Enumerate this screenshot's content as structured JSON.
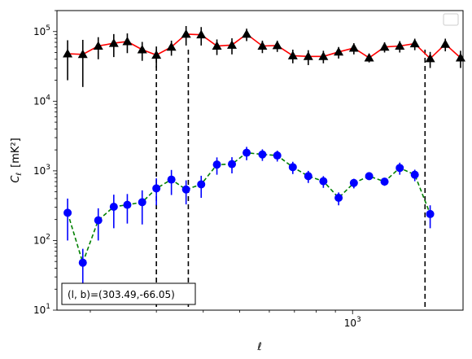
{
  "chart_data": {
    "type": "scatter",
    "title": "",
    "xlabel": "ℓ",
    "ylabel_main": "C",
    "ylabel_sub": "ℓ",
    "ylabel_unit": "[mK²]",
    "xscale": "log",
    "yscale": "log",
    "xlim": [
      163,
      1970
    ],
    "ylim": [
      10,
      200000
    ],
    "grid": false,
    "legend": "top-right, empty",
    "x_tick_labels": [
      {
        "value": 1000,
        "base": "10",
        "exp": "3"
      }
    ],
    "y_tick_labels": [
      {
        "value": 10,
        "base": "10",
        "exp": "1"
      },
      {
        "value": 100,
        "base": "10",
        "exp": "2"
      },
      {
        "value": 1000,
        "base": "10",
        "exp": "3"
      },
      {
        "value": 10000,
        "base": "10",
        "exp": "4"
      },
      {
        "value": 100000,
        "base": "10",
        "exp": "5"
      }
    ],
    "vlines": [
      300,
      365,
      1560
    ],
    "annotation": "(l, b)=(303.49,-66.05)",
    "series": [
      {
        "marker": "triangle",
        "color": "#000000",
        "line_color": "#ff0000",
        "line_style": "solid",
        "x": [
          174,
          191,
          210,
          231,
          251,
          275,
          300,
          329,
          360,
          395,
          435,
          477,
          522,
          575,
          630,
          693,
          762,
          836,
          918,
          1008,
          1107,
          1217,
          1336,
          1465,
          1610,
          1767,
          1940
        ],
        "y": [
          48000,
          47000,
          62000,
          68000,
          72000,
          55000,
          46000,
          60000,
          92000,
          90000,
          62000,
          64000,
          92000,
          62000,
          63000,
          45000,
          44000,
          44000,
          51000,
          58000,
          42000,
          60000,
          62000,
          67000,
          41000,
          66000,
          42000
        ],
        "err_low": [
          28000,
          31000,
          22000,
          25000,
          23000,
          17000,
          16000,
          15000,
          29000,
          27000,
          16000,
          17000,
          19000,
          13000,
          12000,
          10000,
          11000,
          9000,
          10000,
          11000,
          6000,
          10000,
          12000,
          13000,
          11000,
          14000,
          12000
        ],
        "err_high": [
          27000,
          29000,
          21000,
          24000,
          22000,
          16000,
          15000,
          14000,
          28000,
          26000,
          15000,
          16000,
          18000,
          12000,
          11000,
          10000,
          10000,
          9000,
          9000,
          10000,
          6000,
          10000,
          11000,
          12000,
          10000,
          13000,
          11000
        ]
      },
      {
        "marker": "circle",
        "color": "#0000ff",
        "line_color": "#008000",
        "line_style": "dashed",
        "x": [
          174,
          191,
          210,
          231,
          251,
          275,
          300,
          329,
          360,
          395,
          435,
          477,
          522,
          575,
          630,
          693,
          762,
          836,
          918,
          1008,
          1107,
          1217,
          1336,
          1465,
          1610,
          1767,
          1940
        ],
        "y": [
          250,
          48,
          195,
          305,
          325,
          355,
          560,
          750,
          540,
          640,
          1230,
          1250,
          1820,
          1720,
          1660,
          1130,
          840,
          710,
          410,
          670,
          840,
          700,
          1100,
          880,
          240,
          0,
          0
        ],
        "err_low": [
          150,
          28,
          95,
          155,
          150,
          185,
          240,
          300,
          210,
          230,
          350,
          330,
          400,
          330,
          300,
          230,
          170,
          140,
          90,
          110,
          100,
          90,
          220,
          170,
          90,
          0,
          0
        ],
        "err_high": [
          150,
          28,
          95,
          150,
          140,
          170,
          220,
          280,
          190,
          210,
          330,
          320,
          390,
          320,
          290,
          220,
          160,
          130,
          80,
          100,
          90,
          80,
          210,
          160,
          80,
          0,
          0
        ]
      }
    ]
  }
}
